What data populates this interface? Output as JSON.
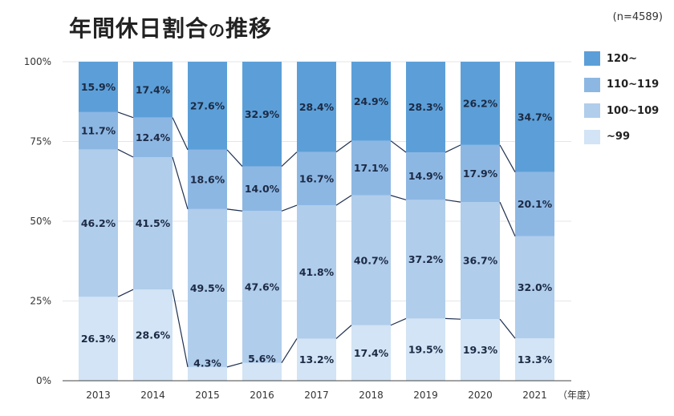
{
  "title_main": "年間休日割合",
  "title_particle": "の",
  "title_tail": "推移",
  "sample_note": "(n=4589)",
  "chart_data": {
    "type": "bar",
    "stacked": true,
    "normalized": true,
    "categories": [
      "2013",
      "2014",
      "2015",
      "2016",
      "2017",
      "2018",
      "2019",
      "2020",
      "2021"
    ],
    "x_unit_label": "（年度）",
    "yticks": [
      "0%",
      "25%",
      "50%",
      "75%",
      "100%"
    ],
    "ylim": [
      0,
      100
    ],
    "legend_position": "right",
    "series": [
      {
        "name": "~99",
        "color": "#d2e4f5",
        "values": [
          26.3,
          28.6,
          4.3,
          5.6,
          13.2,
          17.4,
          19.5,
          19.3,
          13.3
        ],
        "labels": [
          "26.3%",
          "28.6%",
          "4.3%",
          "5.6%",
          "13.2%",
          "17.4%",
          "19.5%",
          "19.3%",
          "13.3%"
        ]
      },
      {
        "name": "100~109",
        "color": "#b0cdeb",
        "values": [
          46.2,
          41.5,
          49.5,
          47.6,
          41.8,
          40.7,
          37.2,
          36.7,
          32.0
        ],
        "labels": [
          "46.2%",
          "41.5%",
          "49.5%",
          "47.6%",
          "41.8%",
          "40.7%",
          "37.2%",
          "36.7%",
          "32.0%"
        ]
      },
      {
        "name": "110~119",
        "color": "#8db7e3",
        "values": [
          11.7,
          12.4,
          18.6,
          14.0,
          16.7,
          17.1,
          14.9,
          17.9,
          20.1
        ],
        "labels": [
          "11.7%",
          "12.4%",
          "18.6%",
          "14.0%",
          "16.7%",
          "17.1%",
          "14.9%",
          "17.9%",
          "20.1%"
        ]
      },
      {
        "name": "120~",
        "color": "#5c9fd8",
        "values": [
          15.9,
          17.4,
          27.6,
          32.9,
          28.4,
          24.9,
          28.3,
          26.2,
          34.7
        ],
        "labels": [
          "15.9%",
          "17.4%",
          "27.6%",
          "32.9%",
          "28.4%",
          "24.9%",
          "28.3%",
          "26.2%",
          "34.7%"
        ]
      }
    ],
    "legend": [
      "120~",
      "110~119",
      "100~109",
      "~99"
    ],
    "legend_colors": [
      "#5c9fd8",
      "#8db7e3",
      "#b0cdeb",
      "#d2e4f5"
    ]
  }
}
